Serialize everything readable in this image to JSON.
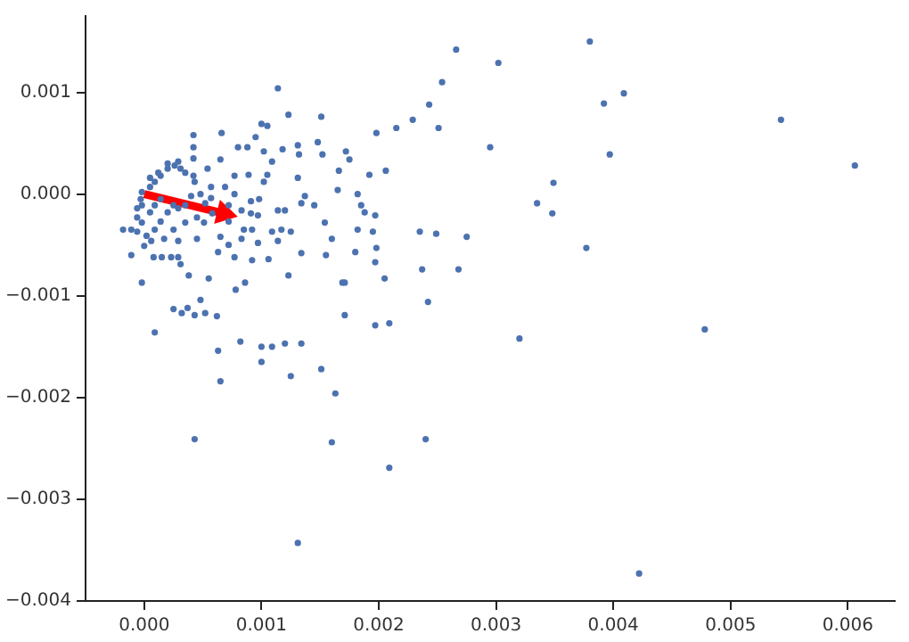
{
  "chart_data": {
    "type": "scatter",
    "xlim": [
      -0.0005,
      0.0064
    ],
    "ylim": [
      -0.004,
      0.00175
    ],
    "xticks": [
      {
        "value": 0,
        "label": "0.000"
      },
      0.001,
      0.002,
      0.003,
      0.004,
      0.005,
      0.006
    ],
    "yticks": [
      {
        "value": -0.004,
        "label": "−0.004"
      },
      {
        "value": -0.003,
        "label": "−0.003"
      },
      {
        "value": -0.002,
        "label": "−0.002"
      },
      {
        "value": -0.001,
        "label": "−0.001"
      },
      {
        "value": 0,
        "label": "0.000"
      },
      0.001
    ],
    "grid": false,
    "marker": "circle",
    "series": [
      {
        "color": "#4c72b0",
        "x": [
          0.00266,
          0.00302,
          0.0038,
          0.00114,
          0.00254,
          0.00409,
          0.00392,
          0.00243,
          0.00151,
          0.00123,
          0.00229,
          0.00215,
          0.00543,
          0.00606,
          0.00251,
          0.00295,
          0.00397,
          0.00349,
          0.00335,
          0.00348,
          0.00377,
          0.00275,
          0.00235,
          0.00249,
          0.00268,
          0.00237,
          0.00242,
          0.00209,
          0.0032,
          0.00478,
          0.0024,
          0.00209,
          0.00422,
          0.00131,
          0.0016,
          0.00043,
          0.00198,
          0.00172,
          0.00175,
          0.00192,
          0.00206,
          0.00182,
          0.00185,
          0.00188,
          0.00197,
          0.00182,
          0.00195,
          0.0018,
          0.00198,
          0.00197,
          0.00171,
          0.00205,
          0.00171,
          0.00197,
          9e-05,
          0.00025,
          0.00032,
          0.00043,
          0.00052,
          0.00062,
          0.00037,
          0.00063,
          0.00065,
          0.00082,
          0.001,
          0.00109,
          0.0012,
          0.00134,
          0.001,
          0.00125,
          0.00151,
          0.00163,
          0.001,
          0.00105,
          0.00042,
          0.00066,
          0.0008,
          0.00088,
          0.00095,
          0.00042,
          0.00042,
          0.00054,
          0.00065,
          0.00102,
          0.00109,
          0.00118,
          0.00131,
          0.00132,
          0.00148,
          0.00152,
          0.00166,
          0.00077,
          0.00089,
          0.00102,
          0.00069,
          0.00077,
          0.00091,
          0.00098,
          0.00105,
          0.00131,
          0.00137,
          0.00145,
          0.00165,
          0.00057,
          0.00057,
          0.00072,
          0.00083,
          0.00091,
          0.00097,
          0.00114,
          0.0012,
          0.00134,
          0.00154,
          0.00072,
          0.00085,
          0.00092,
          0.00109,
          0.00117,
          0.00125,
          0.00083,
          0.00097,
          0.00114,
          0.00065,
          0.00072,
          0.00063,
          0.00077,
          0.00092,
          0.00106,
          0.00134,
          0.00155,
          0.0016,
          0.00123,
          0.00055,
          0.00078,
          0.00086,
          0.00038,
          0.00031,
          0.00029,
          0.00023,
          0.00015,
          8e-05,
          -0.00011,
          -2e-05,
          0.00048,
          0.00169,
          -0.00018,
          -6e-05,
          -3e-05,
          -2e-05,
          5e-05,
          9e-05,
          0.00014,
          0.0002,
          0.00026,
          0.00031,
          0.00035,
          0.00042,
          0.00043,
          -6e-05,
          -2e-05,
          -6e-05,
          2e-05,
          9e-05,
          0.00014,
          0.0002,
          0.00025,
          0.00029,
          0.00035,
          0.0004,
          0.00048,
          0.00052,
          0.00045,
          0.00035,
          0.00025,
          0.00017,
          6e-05,
          0,
          0.00029,
          0.00045,
          0.00051,
          0.00058,
          5e-05,
          0.00012,
          0.0002,
          0.00029,
          -2e-05,
          5e-05,
          9e-05,
          0.00014,
          -0.00011
        ],
        "values": [
          0.00142,
          0.00129,
          0.0015,
          0.00104,
          0.0011,
          0.00099,
          0.00089,
          0.00088,
          0.00076,
          0.00078,
          0.00073,
          0.00065,
          0.00073,
          0.00028,
          0.00065,
          0.00046,
          0.00039,
          0.00011,
          -9e-05,
          -0.00019,
          -0.00053,
          -0.00042,
          -0.00037,
          -0.00039,
          -0.00074,
          -0.00074,
          -0.00106,
          -0.00127,
          -0.00142,
          -0.00133,
          -0.00241,
          -0.00269,
          -0.00373,
          -0.00343,
          -0.00244,
          -0.00241,
          0.0006,
          0.00042,
          0.00034,
          0.00019,
          0.00023,
          0,
          -0.00011,
          -0.00018,
          -0.00021,
          -0.00035,
          -0.00037,
          -0.00057,
          -0.00053,
          -0.00067,
          -0.00087,
          -0.00083,
          -0.00119,
          -0.00129,
          -0.00136,
          -0.00113,
          -0.00117,
          -0.00119,
          -0.00117,
          -0.0012,
          -0.00112,
          -0.00154,
          -0.00184,
          -0.00145,
          -0.0015,
          -0.0015,
          -0.00147,
          -0.00147,
          -0.00165,
          -0.00179,
          -0.00172,
          -0.00196,
          0.00069,
          0.00067,
          0.00058,
          0.0006,
          0.00046,
          0.00046,
          0.00056,
          0.00046,
          0.00035,
          0.00025,
          0.00034,
          0.00042,
          0.00032,
          0.00044,
          0.00048,
          0.00039,
          0.00051,
          0.00039,
          0.00023,
          0.00018,
          0.00019,
          0.00012,
          7e-05,
          0,
          -7e-05,
          -5e-05,
          0.00019,
          0.00016,
          -2e-05,
          -0.00011,
          4e-05,
          7e-05,
          -4e-05,
          -0.00011,
          -0.00016,
          -0.00019,
          -0.00021,
          -0.00016,
          -0.00016,
          -9e-05,
          -0.00028,
          -0.00027,
          -0.00035,
          -0.00035,
          -0.00037,
          -0.00035,
          -0.00037,
          -0.00044,
          -0.00048,
          -0.00046,
          -0.00042,
          -0.0005,
          -0.00057,
          -0.00062,
          -0.00065,
          -0.00064,
          -0.00058,
          -0.0006,
          -0.00044,
          -0.0008,
          -0.00083,
          -0.00094,
          -0.00087,
          -0.0008,
          -0.00069,
          -0.00062,
          -0.00062,
          -0.00062,
          -0.00062,
          -0.0006,
          -0.00087,
          -0.00104,
          -0.00087,
          -0.00035,
          -0.00014,
          -5e-05,
          2e-05,
          7e-05,
          0.00012,
          0.00018,
          0.00025,
          0.00028,
          0.00025,
          0.00021,
          0.00018,
          0.00012,
          -0.00023,
          -0.00028,
          -0.00037,
          -0.00041,
          -0.00035,
          -0.00027,
          -0.00018,
          -0.00011,
          -0.00014,
          -0.00011,
          -2e-05,
          0,
          -9e-05,
          -0.00023,
          -0.00028,
          -0.00035,
          -0.00044,
          -0.00046,
          -0.00051,
          -0.00046,
          -0.00044,
          -0.00028,
          -0.00019,
          0.00016,
          0.00021,
          0.0003,
          0.00032,
          -0.00011,
          -0.00018,
          -0.00011,
          -5e-05,
          -0.00035
        ]
      },
      {
        "type": "line",
        "color": "#ff0000",
        "marker": "triangle",
        "x": [
          0,
          0.00068
        ],
        "values": [
          0,
          -0.00019
        ]
      }
    ]
  }
}
